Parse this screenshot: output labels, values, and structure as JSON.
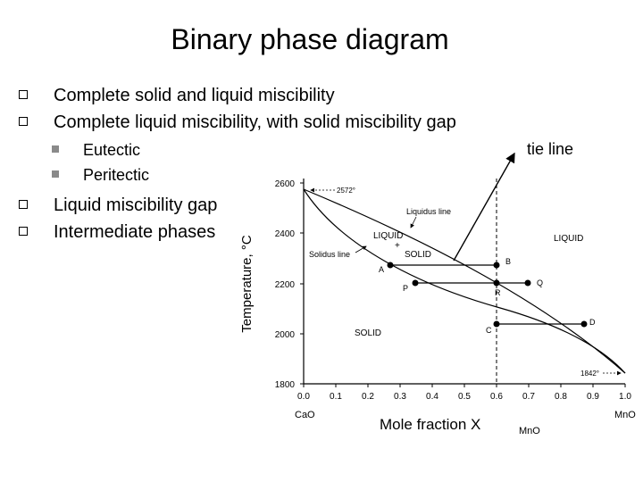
{
  "title": "Binary phase diagram",
  "bullets": [
    "Complete solid and liquid miscibility",
    "Complete liquid miscibility, with solid miscibility gap",
    "Liquid miscibility gap",
    "Intermediate phases"
  ],
  "subbullets": [
    "Eutectic",
    "Peritectic"
  ],
  "annotation": "tie line",
  "diagram": {
    "ylabel": "Temperature, °C",
    "xlabel": "Mole fraction X",
    "xlabel_sub": "MnO",
    "left_component": "CaO",
    "right_component": "MnO",
    "x_ticks": [
      "0.0",
      "0.1",
      "0.2",
      "0.3",
      "0.4",
      "0.5",
      "0.6",
      "0.7",
      "0.8",
      "0.9",
      "1.0"
    ],
    "y_ticks": [
      "1800",
      "2000",
      "2200",
      "2400",
      "2600"
    ],
    "temp_left": "2572°",
    "temp_right": "1842°",
    "region_liquid": "LIQUID",
    "region_solid": "SOLID",
    "region_two_phase_1": "LIQUID",
    "region_two_phase_2": "+",
    "region_two_phase_3": "SOLID",
    "liquidus_label": "Liquidus line",
    "solidus_label": "Solidus line",
    "points": [
      "A",
      "B",
      "P",
      "Q",
      "R",
      "C",
      "D"
    ]
  }
}
